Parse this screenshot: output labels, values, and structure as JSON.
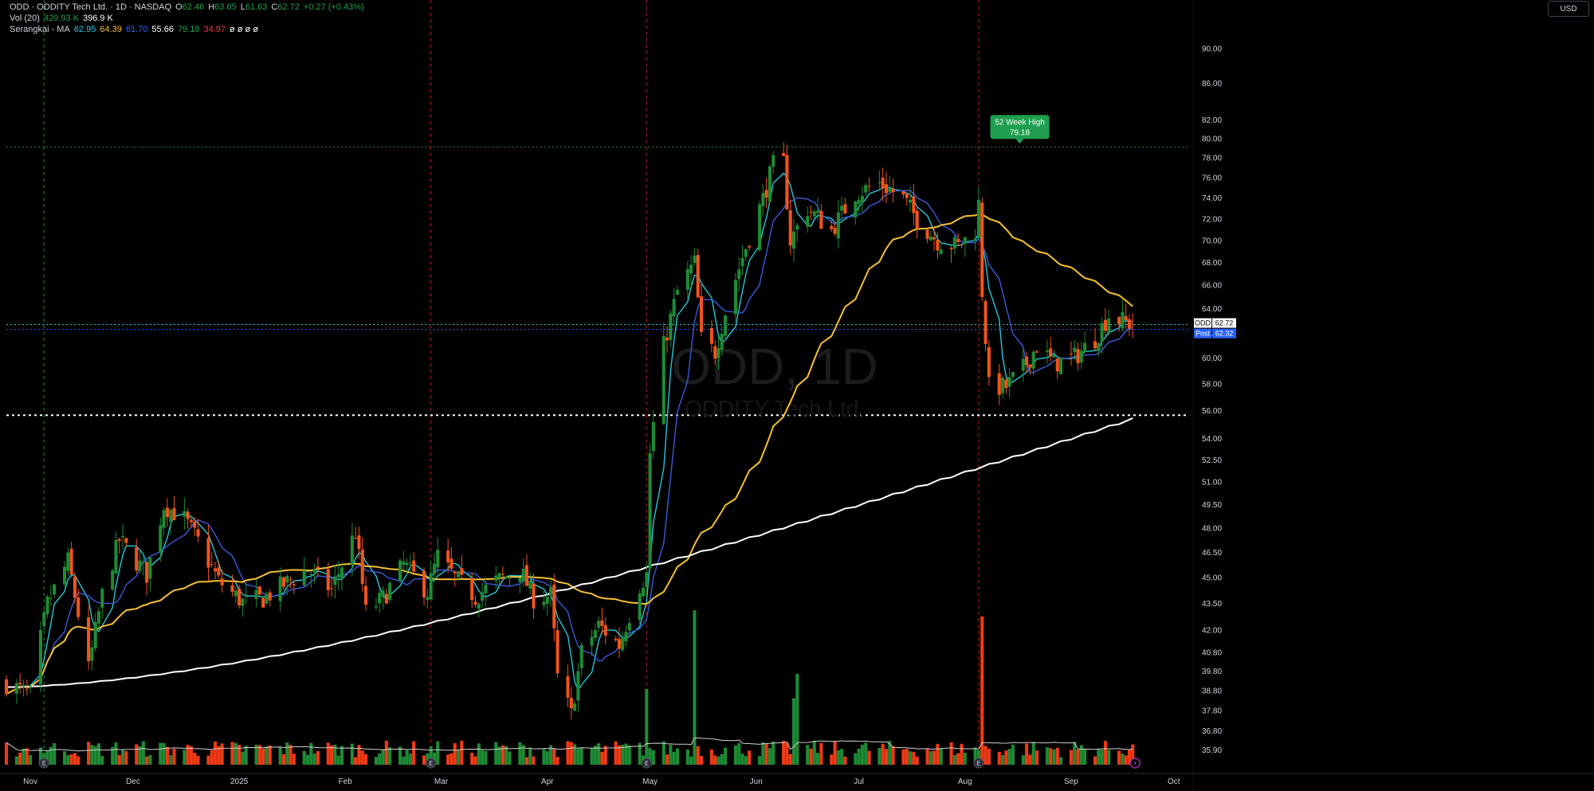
{
  "header": {
    "symbol_title": "ODD · ODDITY Tech Ltd. · 1D · NASDAQ",
    "ohlc": [
      {
        "key": "O",
        "value": "62.46"
      },
      {
        "key": "H",
        "value": "63.65"
      },
      {
        "key": "L",
        "value": "61.63"
      },
      {
        "key": "C",
        "value": "62.72"
      }
    ],
    "change": "+0.27 (+0.43%)",
    "vol_label": "Vol (20)",
    "vol_values": [
      "429.93 K",
      "396.9 K"
    ],
    "ma_label": "Serangkai - MA",
    "ma_values": [
      "62.95",
      "64.39",
      "61.70",
      "55.66",
      "79.18",
      "34.97"
    ],
    "ma_placeholders": "ø ø ø ø"
  },
  "currency_button": "USD",
  "watermark": {
    "symbol": "ODD, 1D",
    "name": "ODDITY Tech Ltd."
  },
  "badge_52w": {
    "label": "52 Week High",
    "value": "79.18"
  },
  "price_tags": [
    {
      "label": "ODD",
      "value": "62.72",
      "price": 62.72,
      "color": "#ffffff"
    },
    {
      "label": "Post",
      "value": "62.32",
      "price": 62.32,
      "color": "#2962ff"
    }
  ],
  "event_markers": [
    "E",
    "E",
    "E",
    "E",
    "E",
    "⚡"
  ],
  "colors": {
    "up": "#1e8b35",
    "down": "#f0541c",
    "vol_up": "#1e8b35",
    "vol_down": "#f03a16",
    "ma_fast": "#26c6da",
    "ma_mid": "#3a5bd9",
    "ma_50": "#f6c035",
    "ma_200": "#ffffff",
    "grid_line": "#1f2937",
    "event_line": "#b3271a"
  },
  "chart_data": {
    "type": "candlestick",
    "y_scale": "log",
    "ylim": [
      35.3,
      94.0
    ],
    "y_ticks": [
      "90.00",
      "86.00",
      "82.00",
      "80.00",
      "78.00",
      "76.00",
      "74.00",
      "72.00",
      "70.00",
      "68.00",
      "66.00",
      "64.00",
      "62.00",
      "60.00",
      "58.00",
      "56.00",
      "54.00",
      "52.50",
      "51.00",
      "49.50",
      "48.00",
      "46.50",
      "45.00",
      "43.50",
      "42.00",
      "40.80",
      "39.80",
      "38.80",
      "37.80",
      "36.80",
      "35.90"
    ],
    "x_labels": [
      {
        "label": "Nov",
        "date": "2024-11-01"
      },
      {
        "label": "Dec",
        "date": "2024-12-01"
      },
      {
        "label": "2025",
        "date": "2025-01-01"
      },
      {
        "label": "Feb",
        "date": "2025-02-01"
      },
      {
        "label": "Mar",
        "date": "2025-03-01"
      },
      {
        "label": "Apr",
        "date": "2025-04-01"
      },
      {
        "label": "May",
        "date": "2025-05-01"
      },
      {
        "label": "Jun",
        "date": "2025-06-01"
      },
      {
        "label": "Jul",
        "date": "2025-07-01"
      },
      {
        "label": "Aug",
        "date": "2025-08-01"
      },
      {
        "label": "Sep",
        "date": "2025-09-01"
      },
      {
        "label": "Oct",
        "date": "2025-10-01"
      }
    ],
    "date_range": [
      "2024-10-25",
      "2025-10-05"
    ],
    "earnings_dates": [
      "2024-11-05",
      "2025-02-26",
      "2025-04-30",
      "2025-08-05"
    ],
    "high_52w_level": 79.18,
    "support_level": 55.7,
    "price_path": [
      [
        "2024-10-25",
        39.2
      ],
      [
        "2024-11-01",
        38.6
      ],
      [
        "2024-11-06",
        43.5
      ],
      [
        "2024-11-12",
        46.0
      ],
      [
        "2024-11-18",
        39.9
      ],
      [
        "2024-11-22",
        44.0
      ],
      [
        "2024-11-27",
        47.3
      ],
      [
        "2024-12-05",
        45.2
      ],
      [
        "2024-12-10",
        49.5
      ],
      [
        "2024-12-16",
        48.6
      ],
      [
        "2024-12-20",
        47.2
      ],
      [
        "2024-12-26",
        44.8
      ],
      [
        "2025-01-02",
        43.6
      ],
      [
        "2025-01-08",
        43.8
      ],
      [
        "2025-01-14",
        44.6
      ],
      [
        "2025-01-21",
        45.5
      ],
      [
        "2025-01-28",
        44.3
      ],
      [
        "2025-02-04",
        47.8
      ],
      [
        "2025-02-07",
        43.0
      ],
      [
        "2025-02-12",
        43.8
      ],
      [
        "2025-02-18",
        45.8
      ],
      [
        "2025-02-25",
        44.2
      ],
      [
        "2025-02-28",
        46.3
      ],
      [
        "2025-03-05",
        45.0
      ],
      [
        "2025-03-11",
        43.9
      ],
      [
        "2025-03-17",
        44.8
      ],
      [
        "2025-03-24",
        45.5
      ],
      [
        "2025-03-28",
        43.8
      ],
      [
        "2025-04-02",
        44.0
      ],
      [
        "2025-04-04",
        39.5
      ],
      [
        "2025-04-08",
        37.6
      ],
      [
        "2025-04-11",
        40.8
      ],
      [
        "2025-04-16",
        42.3
      ],
      [
        "2025-04-22",
        41.2
      ],
      [
        "2025-04-28",
        44.6
      ],
      [
        "2025-04-30",
        45.2
      ],
      [
        "2025-05-01",
        53.0
      ],
      [
        "2025-05-05",
        61.0
      ],
      [
        "2025-05-09",
        65.5
      ],
      [
        "2025-05-14",
        68.0
      ],
      [
        "2025-05-16",
        61.5
      ],
      [
        "2025-05-20",
        60.5
      ],
      [
        "2025-05-23",
        63.8
      ],
      [
        "2025-05-28",
        68.5
      ],
      [
        "2025-06-03",
        74.0
      ],
      [
        "2025-06-06",
        77.3
      ],
      [
        "2025-06-09",
        77.5
      ],
      [
        "2025-06-11",
        70.0
      ],
      [
        "2025-06-16",
        73.0
      ],
      [
        "2025-06-23",
        71.0
      ],
      [
        "2025-06-30",
        74.5
      ],
      [
        "2025-07-07",
        75.5
      ],
      [
        "2025-07-14",
        74.0
      ],
      [
        "2025-07-18",
        72.0
      ],
      [
        "2025-07-24",
        70.0
      ],
      [
        "2025-07-30",
        69.5
      ],
      [
        "2025-08-04",
        71.0
      ],
      [
        "2025-08-05",
        73.5
      ],
      [
        "2025-08-06",
        65.5
      ],
      [
        "2025-08-08",
        57.8
      ],
      [
        "2025-08-13",
        57.8
      ],
      [
        "2025-08-18",
        59.2
      ],
      [
        "2025-08-22",
        61.0
      ],
      [
        "2025-08-27",
        59.6
      ],
      [
        "2025-09-02",
        60.1
      ],
      [
        "2025-09-08",
        61.6
      ],
      [
        "2025-09-12",
        63.5
      ],
      [
        "2025-09-17",
        62.9
      ],
      [
        "2025-09-19",
        62.72
      ]
    ],
    "volume_spikes": [
      {
        "date": "2025-04-30",
        "value": 2.5
      },
      {
        "date": "2025-05-14",
        "value": 5.1
      },
      {
        "date": "2025-06-12",
        "value": 2.2
      },
      {
        "date": "2025-06-13",
        "value": 3.0
      },
      {
        "date": "2025-08-06",
        "value": 4.9
      }
    ],
    "series": [
      {
        "name": "62.95",
        "color": "#26c6da",
        "window": 5
      },
      {
        "name": "61.70",
        "color": "#3a5bd9",
        "window": 10
      },
      {
        "name": "64.39",
        "color": "#f6c035",
        "window": 50
      },
      {
        "name": "55.66",
        "color": "#ffffff",
        "window": 200
      }
    ]
  }
}
